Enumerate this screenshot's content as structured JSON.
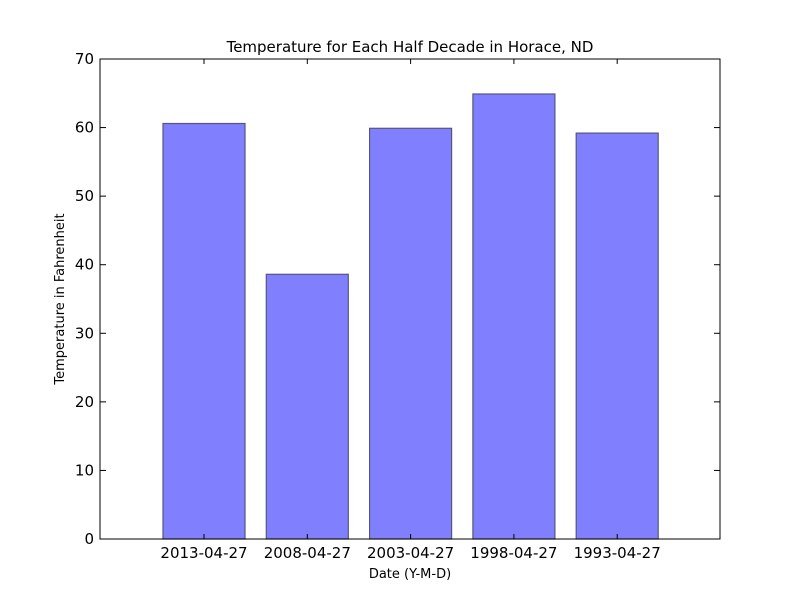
{
  "chart_data": {
    "type": "bar",
    "title": "Temperature for Each Half Decade in Horace, ND",
    "xlabel": "Date (Y-M-D)",
    "ylabel": "Temperature in Fahrenheit",
    "categories": [
      "2013-04-27",
      "2008-04-27",
      "2003-04-27",
      "1998-04-27",
      "1993-04-27"
    ],
    "values": [
      60.6,
      38.6,
      59.9,
      64.9,
      59.2
    ],
    "ylim": [
      0,
      70
    ],
    "yticks": [
      "0",
      "10",
      "20",
      "30",
      "40",
      "50",
      "60",
      "70"
    ],
    "grid": false,
    "legend": "none",
    "colors": {
      "bar_fill": "#8080ff",
      "bar_edge": "#55557f",
      "axis": "#000000"
    }
  }
}
